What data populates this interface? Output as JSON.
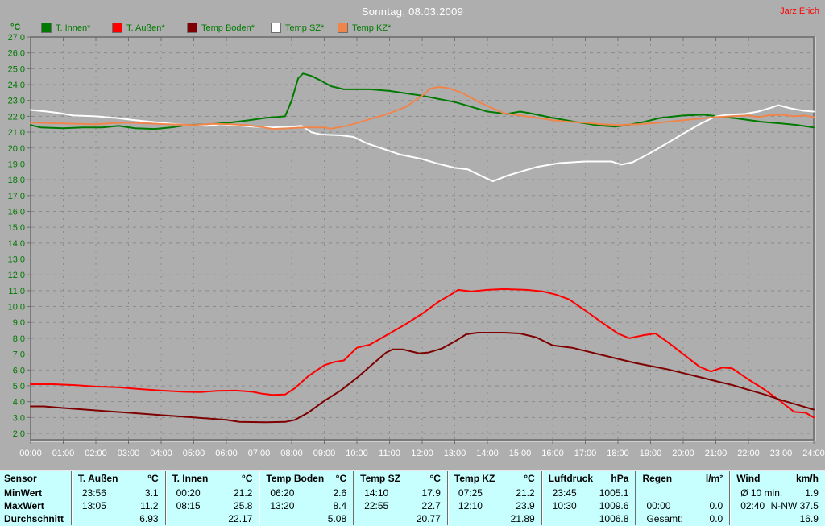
{
  "header": {
    "title": "Sonntag, 08.03.2009",
    "author": "Jarz Erich"
  },
  "axes": {
    "unit_label": "°C",
    "y_min": 2.0,
    "y_max": 27.0,
    "y_step": 1.0,
    "x_labels": [
      "00:00",
      "01:00",
      "02:00",
      "03:00",
      "04:00",
      "05:00",
      "06:00",
      "07:00",
      "08:00",
      "09:00",
      "10:00",
      "11:00",
      "12:00",
      "13:00",
      "14:00",
      "15:00",
      "16:00",
      "17:00",
      "18:00",
      "19:00",
      "20:00",
      "21:00",
      "22:00",
      "23:00",
      "24:00"
    ]
  },
  "legend": [
    {
      "label": "T. Innen*",
      "color": "#007a00"
    },
    {
      "label": "T. Außen*",
      "color": "#ff0000"
    },
    {
      "label": "Temp Boden*",
      "color": "#7e0000"
    },
    {
      "label": "Temp SZ*",
      "color": "#ffffff"
    },
    {
      "label": "Temp KZ*",
      "color": "#f0854c"
    }
  ],
  "colors": {
    "background": "#aeaeae",
    "grid": "#8b8b8b",
    "frame": "#6d6d6d",
    "frame_highlight": "#dcdcdc",
    "title_text": "#ffffff",
    "axis_text_y": "#007a00",
    "axis_text_x": "#ffffff",
    "author_text": "#ff0000",
    "table_background": "#c7ffff"
  },
  "chart_data": {
    "type": "line",
    "title": "Sonntag, 08.03.2009",
    "ylabel": "°C",
    "ylim": [
      2.0,
      27.0
    ],
    "xlim_hours": [
      0,
      24
    ],
    "grid": true,
    "legend_position": "top",
    "series": [
      {
        "name": "T. Innen",
        "color": "#007a00",
        "points": [
          [
            0,
            21.45
          ],
          [
            0.3,
            21.3
          ],
          [
            1,
            21.25
          ],
          [
            1.6,
            21.3
          ],
          [
            2.2,
            21.3
          ],
          [
            2.7,
            21.4
          ],
          [
            3.2,
            21.25
          ],
          [
            3.8,
            21.2
          ],
          [
            4.3,
            21.3
          ],
          [
            4.8,
            21.45
          ],
          [
            5.5,
            21.5
          ],
          [
            6.1,
            21.6
          ],
          [
            6.7,
            21.75
          ],
          [
            7.2,
            21.9
          ],
          [
            7.8,
            22.0
          ],
          [
            8.0,
            23.0
          ],
          [
            8.2,
            24.4
          ],
          [
            8.35,
            24.7
          ],
          [
            8.6,
            24.55
          ],
          [
            8.9,
            24.25
          ],
          [
            9.2,
            23.9
          ],
          [
            9.6,
            23.7
          ],
          [
            10.4,
            23.7
          ],
          [
            11,
            23.6
          ],
          [
            11.5,
            23.45
          ],
          [
            12,
            23.3
          ],
          [
            12.5,
            23.1
          ],
          [
            13,
            22.9
          ],
          [
            13.5,
            22.6
          ],
          [
            14,
            22.3
          ],
          [
            14.6,
            22.15
          ],
          [
            15,
            22.3
          ],
          [
            15.3,
            22.2
          ],
          [
            16,
            21.9
          ],
          [
            16.7,
            21.65
          ],
          [
            17.3,
            21.45
          ],
          [
            17.9,
            21.35
          ],
          [
            18.3,
            21.45
          ],
          [
            18.8,
            21.65
          ],
          [
            19.3,
            21.9
          ],
          [
            20,
            22.05
          ],
          [
            20.6,
            22.1
          ],
          [
            21.1,
            22.0
          ],
          [
            21.7,
            21.85
          ],
          [
            22.4,
            21.65
          ],
          [
            23,
            21.55
          ],
          [
            23.5,
            21.45
          ],
          [
            24,
            21.3
          ]
        ]
      },
      {
        "name": "T. Außen",
        "color": "#ff0000",
        "points": [
          [
            0,
            5.1
          ],
          [
            0.7,
            5.1
          ],
          [
            1.3,
            5.05
          ],
          [
            2,
            4.95
          ],
          [
            2.7,
            4.9
          ],
          [
            3.3,
            4.8
          ],
          [
            4,
            4.7
          ],
          [
            4.7,
            4.62
          ],
          [
            5.2,
            4.6
          ],
          [
            5.7,
            4.68
          ],
          [
            6.3,
            4.7
          ],
          [
            6.8,
            4.62
          ],
          [
            7.1,
            4.5
          ],
          [
            7.4,
            4.43
          ],
          [
            7.8,
            4.45
          ],
          [
            8.1,
            4.85
          ],
          [
            8.5,
            5.6
          ],
          [
            9,
            6.3
          ],
          [
            9.3,
            6.5
          ],
          [
            9.6,
            6.6
          ],
          [
            10,
            7.4
          ],
          [
            10.4,
            7.6
          ],
          [
            11,
            8.3
          ],
          [
            11.5,
            8.9
          ],
          [
            12,
            9.55
          ],
          [
            12.5,
            10.3
          ],
          [
            13,
            10.9
          ],
          [
            13.1,
            11.05
          ],
          [
            13.5,
            10.95
          ],
          [
            14,
            11.05
          ],
          [
            14.5,
            11.1
          ],
          [
            15.2,
            11.05
          ],
          [
            15.7,
            10.95
          ],
          [
            16.1,
            10.75
          ],
          [
            16.5,
            10.45
          ],
          [
            17,
            9.75
          ],
          [
            17.5,
            9.0
          ],
          [
            18,
            8.3
          ],
          [
            18.35,
            8.0
          ],
          [
            18.8,
            8.2
          ],
          [
            19.15,
            8.3
          ],
          [
            19.5,
            7.8
          ],
          [
            20,
            7.0
          ],
          [
            20.5,
            6.2
          ],
          [
            20.85,
            5.9
          ],
          [
            21.2,
            6.15
          ],
          [
            21.5,
            6.1
          ],
          [
            22,
            5.4
          ],
          [
            22.5,
            4.75
          ],
          [
            23,
            4.0
          ],
          [
            23.4,
            3.35
          ],
          [
            23.75,
            3.3
          ],
          [
            24,
            3.0
          ]
        ]
      },
      {
        "name": "Temp Boden",
        "color": "#7e0000",
        "points": [
          [
            0,
            3.7
          ],
          [
            0.4,
            3.7
          ],
          [
            1,
            3.6
          ],
          [
            2,
            3.45
          ],
          [
            3,
            3.3
          ],
          [
            4,
            3.15
          ],
          [
            5,
            3.0
          ],
          [
            6,
            2.85
          ],
          [
            6.4,
            2.72
          ],
          [
            7.2,
            2.7
          ],
          [
            7.8,
            2.72
          ],
          [
            8.1,
            2.85
          ],
          [
            8.5,
            3.3
          ],
          [
            9,
            4.05
          ],
          [
            9.5,
            4.7
          ],
          [
            10,
            5.5
          ],
          [
            10.5,
            6.4
          ],
          [
            10.9,
            7.1
          ],
          [
            11.1,
            7.3
          ],
          [
            11.4,
            7.3
          ],
          [
            11.9,
            7.05
          ],
          [
            12.2,
            7.1
          ],
          [
            12.6,
            7.35
          ],
          [
            13,
            7.8
          ],
          [
            13.35,
            8.25
          ],
          [
            13.7,
            8.35
          ],
          [
            14.5,
            8.35
          ],
          [
            15,
            8.3
          ],
          [
            15.5,
            8.05
          ],
          [
            16,
            7.55
          ],
          [
            16.6,
            7.4
          ],
          [
            17,
            7.2
          ],
          [
            17.5,
            6.95
          ],
          [
            18,
            6.7
          ],
          [
            18.5,
            6.45
          ],
          [
            19,
            6.25
          ],
          [
            19.5,
            6.05
          ],
          [
            20,
            5.8
          ],
          [
            20.5,
            5.55
          ],
          [
            21,
            5.3
          ],
          [
            21.5,
            5.05
          ],
          [
            22,
            4.75
          ],
          [
            22.5,
            4.45
          ],
          [
            23,
            4.1
          ],
          [
            23.5,
            3.8
          ],
          [
            24,
            3.5
          ]
        ]
      },
      {
        "name": "Temp SZ",
        "color": "#ffffff",
        "points": [
          [
            0,
            22.4
          ],
          [
            0.5,
            22.3
          ],
          [
            0.9,
            22.2
          ],
          [
            1.3,
            22.05
          ],
          [
            2,
            22.0
          ],
          [
            2.6,
            21.9
          ],
          [
            3.2,
            21.75
          ],
          [
            3.7,
            21.65
          ],
          [
            4.2,
            21.55
          ],
          [
            4.8,
            21.45
          ],
          [
            5.4,
            21.4
          ],
          [
            5.8,
            21.5
          ],
          [
            6.2,
            21.45
          ],
          [
            6.8,
            21.35
          ],
          [
            7.4,
            21.3
          ],
          [
            8,
            21.35
          ],
          [
            8.3,
            21.4
          ],
          [
            8.6,
            21.0
          ],
          [
            8.9,
            20.85
          ],
          [
            9.5,
            20.8
          ],
          [
            9.9,
            20.7
          ],
          [
            10.3,
            20.3
          ],
          [
            10.8,
            19.95
          ],
          [
            11.3,
            19.6
          ],
          [
            12,
            19.3
          ],
          [
            12.5,
            19.0
          ],
          [
            13,
            18.75
          ],
          [
            13.4,
            18.65
          ],
          [
            13.8,
            18.25
          ],
          [
            14.17,
            17.9
          ],
          [
            14.6,
            18.25
          ],
          [
            15,
            18.5
          ],
          [
            15.5,
            18.8
          ],
          [
            16.2,
            19.05
          ],
          [
            17,
            19.15
          ],
          [
            17.8,
            19.15
          ],
          [
            18.1,
            18.95
          ],
          [
            18.45,
            19.1
          ],
          [
            19,
            19.7
          ],
          [
            19.5,
            20.3
          ],
          [
            20,
            20.9
          ],
          [
            20.5,
            21.5
          ],
          [
            21,
            22.0
          ],
          [
            21.4,
            22.1
          ],
          [
            21.9,
            22.15
          ],
          [
            22.3,
            22.3
          ],
          [
            22.7,
            22.55
          ],
          [
            22.92,
            22.7
          ],
          [
            23.3,
            22.5
          ],
          [
            23.7,
            22.35
          ],
          [
            24,
            22.3
          ]
        ]
      },
      {
        "name": "Temp KZ",
        "color": "#f0854c",
        "points": [
          [
            0,
            21.6
          ],
          [
            1,
            21.55
          ],
          [
            2,
            21.5
          ],
          [
            2.5,
            21.57
          ],
          [
            3,
            21.6
          ],
          [
            3.6,
            21.55
          ],
          [
            4.2,
            21.5
          ],
          [
            5,
            21.45
          ],
          [
            5.6,
            21.52
          ],
          [
            6.1,
            21.5
          ],
          [
            6.6,
            21.45
          ],
          [
            7,
            21.35
          ],
          [
            7.42,
            21.2
          ],
          [
            7.9,
            21.25
          ],
          [
            8.4,
            21.3
          ],
          [
            9,
            21.3
          ],
          [
            9.2,
            21.22
          ],
          [
            9.7,
            21.4
          ],
          [
            10.2,
            21.7
          ],
          [
            10.7,
            22.0
          ],
          [
            11,
            22.2
          ],
          [
            11.5,
            22.6
          ],
          [
            12,
            23.3
          ],
          [
            12.25,
            23.75
          ],
          [
            12.5,
            23.85
          ],
          [
            12.8,
            23.78
          ],
          [
            13.2,
            23.5
          ],
          [
            13.7,
            22.95
          ],
          [
            14,
            22.65
          ],
          [
            14.5,
            22.2
          ],
          [
            15,
            22.05
          ],
          [
            15.6,
            21.88
          ],
          [
            16,
            21.75
          ],
          [
            16.5,
            21.65
          ],
          [
            17,
            21.6
          ],
          [
            17.5,
            21.5
          ],
          [
            18,
            21.45
          ],
          [
            18.6,
            21.5
          ],
          [
            19,
            21.55
          ],
          [
            19.5,
            21.65
          ],
          [
            20,
            21.75
          ],
          [
            20.5,
            21.85
          ],
          [
            21,
            21.95
          ],
          [
            21.5,
            22.0
          ],
          [
            22,
            22.05
          ],
          [
            22.3,
            21.95
          ],
          [
            22.6,
            22.05
          ],
          [
            23,
            22.1
          ],
          [
            23.4,
            22.0
          ],
          [
            23.7,
            22.05
          ],
          [
            24,
            21.95
          ]
        ]
      }
    ]
  },
  "table": {
    "row_labels": [
      "Sensor",
      "MinWert",
      "MaxWert",
      "Durchschnitt"
    ],
    "columns": [
      {
        "name": "T. Außen",
        "unit": "°C",
        "min": {
          "time": "23:56",
          "value": "3.1"
        },
        "max": {
          "time": "13:05",
          "value": "11.2"
        },
        "avg": {
          "time": "",
          "value": "6.93"
        }
      },
      {
        "name": "T. Innen",
        "unit": "°C",
        "min": {
          "time": "00:20",
          "value": "21.2"
        },
        "max": {
          "time": "08:15",
          "value": "25.8"
        },
        "avg": {
          "time": "",
          "value": "22.17"
        }
      },
      {
        "name": "Temp Boden",
        "unit": "°C",
        "min": {
          "time": "06:20",
          "value": "2.6"
        },
        "max": {
          "time": "13:20",
          "value": "8.4"
        },
        "avg": {
          "time": "",
          "value": "5.08"
        }
      },
      {
        "name": "Temp SZ",
        "unit": "°C",
        "min": {
          "time": "14:10",
          "value": "17.9"
        },
        "max": {
          "time": "22:55",
          "value": "22.7"
        },
        "avg": {
          "time": "",
          "value": "20.77"
        }
      },
      {
        "name": "Temp KZ",
        "unit": "°C",
        "min": {
          "time": "07:25",
          "value": "21.2"
        },
        "max": {
          "time": "12:10",
          "value": "23.9"
        },
        "avg": {
          "time": "",
          "value": "21.89"
        }
      },
      {
        "name": "Luftdruck",
        "unit": "hPa",
        "min": {
          "time": "23:45",
          "value": "1005.1"
        },
        "max": {
          "time": "10:30",
          "value": "1009.6"
        },
        "avg": {
          "time": "",
          "value": "1006.8"
        }
      },
      {
        "name": "Regen",
        "unit": "l/m²",
        "min": {
          "time": "",
          "value": ""
        },
        "max": {
          "time": "00:00",
          "value": "0.0"
        },
        "avg": {
          "time": "Gesamt:",
          "value": "0.0"
        }
      },
      {
        "name": "Wind",
        "unit": "km/h",
        "min": {
          "time": "Ø 10 min.",
          "value": "1.9"
        },
        "max": {
          "time": "02:40",
          "value": "N-NW 37.5"
        },
        "avg": {
          "time": "",
          "value": "16.9"
        }
      }
    ]
  }
}
